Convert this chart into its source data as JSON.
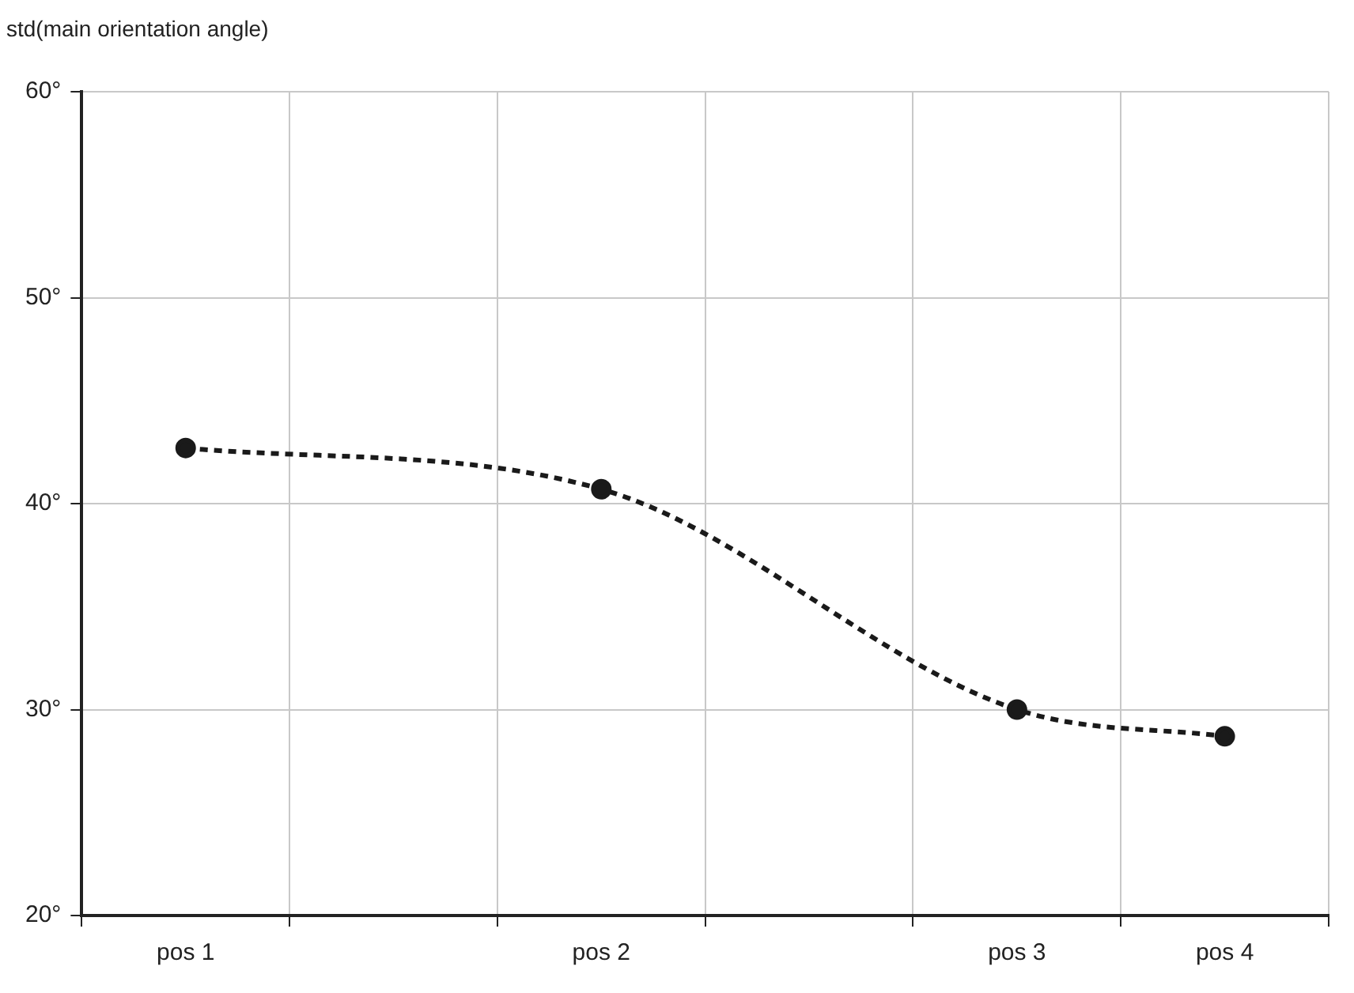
{
  "chart_data": {
    "type": "line",
    "ylabel": "std(main orientation angle)",
    "categories": [
      "pos 1",
      null,
      "pos 2",
      null,
      "pos 3",
      "pos 4"
    ],
    "series": [
      {
        "color": "#1a1a1a",
        "values": [
          42.7,
          null,
          40.7,
          null,
          30.0,
          28.7
        ]
      }
    ],
    "ylim": [
      20,
      60
    ],
    "yticks": [
      {
        "value": 20,
        "label": "20°"
      },
      {
        "value": 30,
        "label": "30°"
      },
      {
        "value": 40,
        "label": "40°"
      },
      {
        "value": 50,
        "label": "50°"
      },
      {
        "value": 60,
        "label": "60°"
      }
    ],
    "grid": true,
    "legend": false,
    "marker": "circle",
    "line_style": "dashed"
  }
}
